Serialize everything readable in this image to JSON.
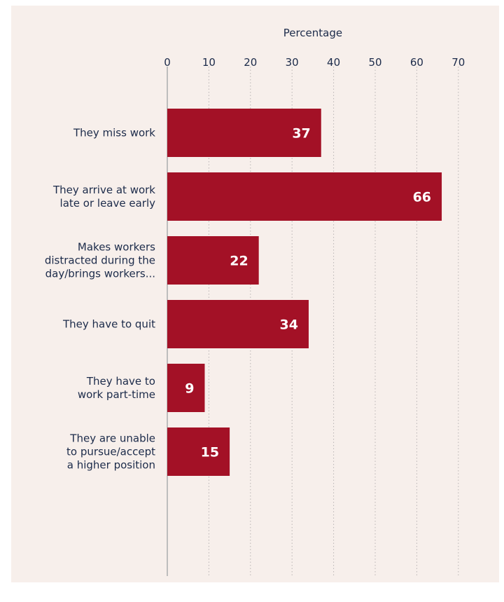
{
  "chart_data": {
    "type": "bar",
    "orientation": "horizontal",
    "xlabel": "Percentage",
    "xlim": [
      0,
      70
    ],
    "xticks": [
      0,
      10,
      20,
      30,
      40,
      50,
      60,
      70
    ],
    "grid": "vertical dotted",
    "categories": [
      "They miss work",
      "They arrive at work\nlate or leave early",
      "Makes workers\ndistracted during the\nday/brings workers...",
      "They have to quit",
      "They have to \nwork part-time",
      "They are unable\nto pursue/accept\na higher position"
    ],
    "values": [
      37,
      66,
      22,
      34,
      9,
      15
    ],
    "data_labels": [
      "37",
      "66",
      "22",
      "34",
      "9",
      "15"
    ],
    "bar_color": "#a31126",
    "label_color": "#ffffff",
    "text_color": "#1c2b4a",
    "background": "#f7efeb"
  }
}
